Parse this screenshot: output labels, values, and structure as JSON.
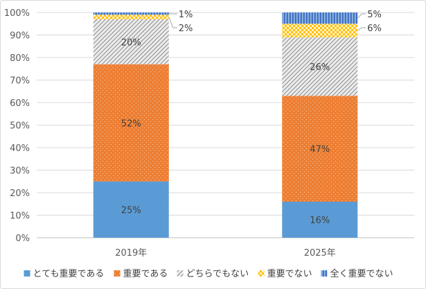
{
  "chart_data": {
    "type": "bar",
    "stacked": true,
    "percent": true,
    "categories": [
      "2019年",
      "2025年"
    ],
    "y_ticks": [
      "0%",
      "10%",
      "20%",
      "30%",
      "40%",
      "50%",
      "60%",
      "70%",
      "80%",
      "90%",
      "100%"
    ],
    "ylim": [
      0,
      100
    ],
    "grid": true,
    "legend_position": "bottom",
    "series": [
      {
        "name": "とても重要である",
        "values": [
          25,
          16
        ],
        "labels": [
          "25%",
          "16%"
        ],
        "color": "#5b9bd5",
        "pattern": "solid"
      },
      {
        "name": "重要である",
        "values": [
          52,
          47
        ],
        "labels": [
          "52%",
          "47%"
        ],
        "color": "#ed7d31",
        "pattern": "dots"
      },
      {
        "name": "どちらでもない",
        "values": [
          20,
          26
        ],
        "labels": [
          "20%",
          "26%"
        ],
        "color": "#a5a5a5",
        "pattern": "diagonal"
      },
      {
        "name": "重要でない",
        "values": [
          2,
          6
        ],
        "labels": [
          "2%",
          "6%"
        ],
        "color": "#ffc000",
        "pattern": "checker"
      },
      {
        "name": "全く重要でない",
        "values": [
          1,
          5
        ],
        "labels": [
          "1%",
          "5%"
        ],
        "color": "#4472c4",
        "pattern": "vertical"
      }
    ],
    "callout_series": [
      "重要でない",
      "全く重要でない"
    ]
  }
}
